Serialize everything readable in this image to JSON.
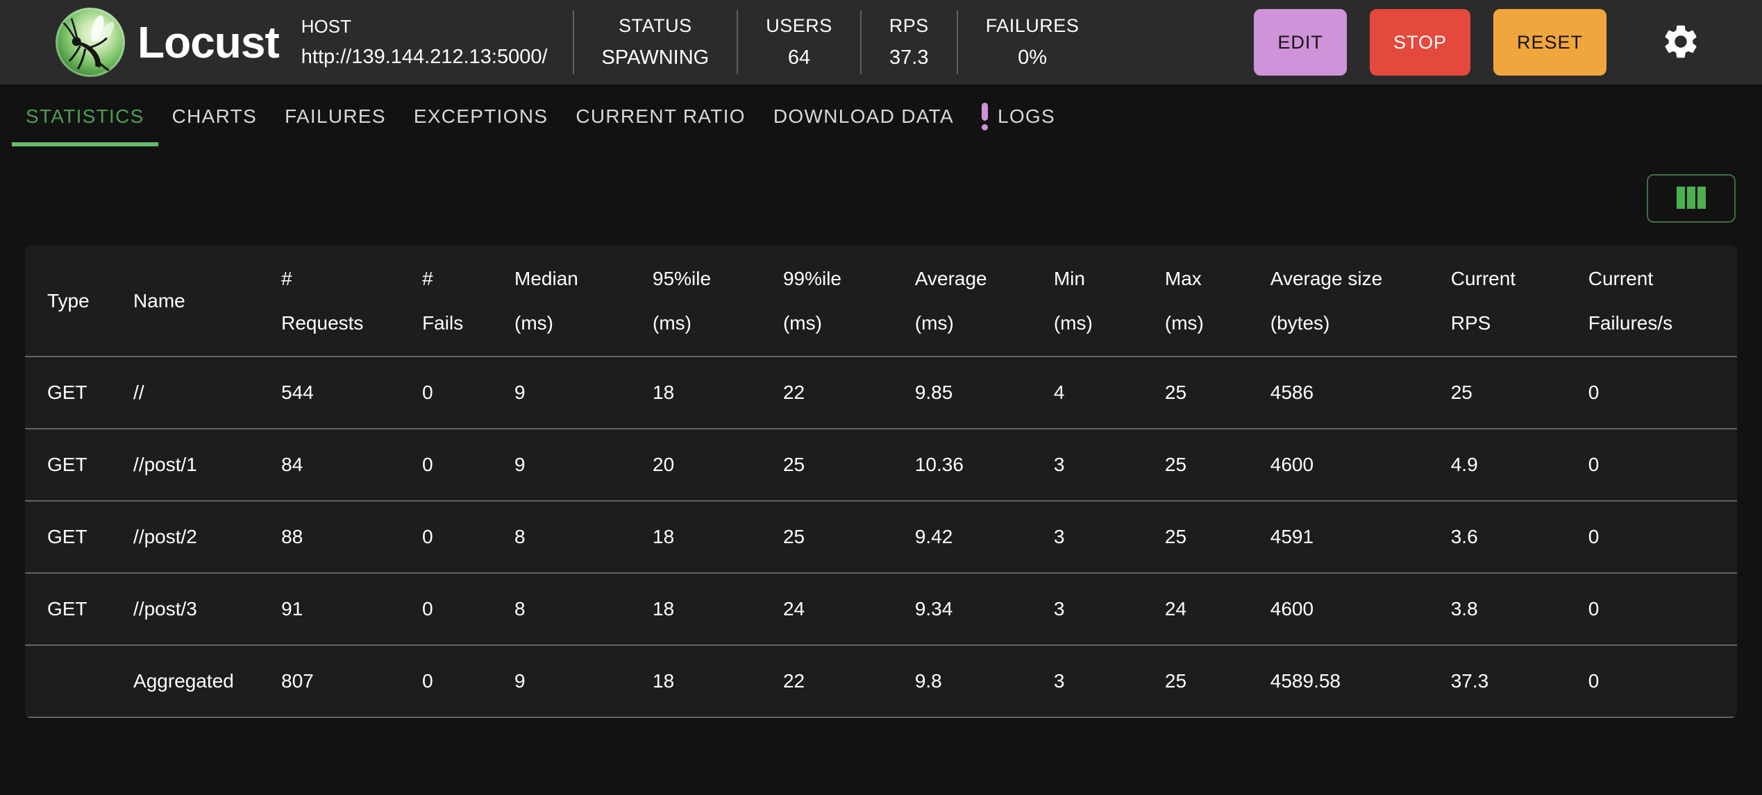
{
  "header": {
    "brand": "Locust",
    "host": {
      "label": "HOST",
      "value": "http://139.144.212.13:5000/"
    },
    "stats": [
      {
        "label": "STATUS",
        "value": "SPAWNING"
      },
      {
        "label": "USERS",
        "value": "64"
      },
      {
        "label": "RPS",
        "value": "37.3"
      },
      {
        "label": "FAILURES",
        "value": "0%"
      }
    ],
    "buttons": [
      {
        "label": "EDIT",
        "bg": "#ce93d8",
        "fg": "#141414"
      },
      {
        "label": "STOP",
        "bg": "#e5493d",
        "fg": "#ffffff"
      },
      {
        "label": "RESET",
        "bg": "#f0a63c",
        "fg": "#141414"
      }
    ]
  },
  "tabs": [
    {
      "label": "STATISTICS",
      "active": true
    },
    {
      "label": "CHARTS"
    },
    {
      "label": "FAILURES"
    },
    {
      "label": "EXCEPTIONS"
    },
    {
      "label": "CURRENT RATIO"
    },
    {
      "label": "DOWNLOAD DATA"
    },
    {
      "label": "LOGS",
      "badge": "!"
    }
  ],
  "table": {
    "columns": [
      "Type",
      "Name",
      "#\nRequests",
      "#\nFails",
      "Median\n(ms)",
      "95%ile\n(ms)",
      "99%ile\n(ms)",
      "Average\n(ms)",
      "Min\n(ms)",
      "Max\n(ms)",
      "Average size\n(bytes)",
      "Current\nRPS",
      "Current\nFailures/s"
    ],
    "rows": [
      {
        "cells": [
          "GET",
          "//",
          "544",
          "0",
          "9",
          "18",
          "22",
          "9.85",
          "4",
          "25",
          "4586",
          "25",
          "0"
        ]
      },
      {
        "cells": [
          "GET",
          "//post/1",
          "84",
          "0",
          "9",
          "20",
          "25",
          "10.36",
          "3",
          "25",
          "4600",
          "4.9",
          "0"
        ]
      },
      {
        "cells": [
          "GET",
          "//post/2",
          "88",
          "0",
          "8",
          "18",
          "25",
          "9.42",
          "3",
          "25",
          "4591",
          "3.6",
          "0"
        ]
      },
      {
        "cells": [
          "GET",
          "//post/3",
          "91",
          "0",
          "8",
          "18",
          "24",
          "9.34",
          "3",
          "24",
          "4600",
          "3.8",
          "0"
        ]
      },
      {
        "cells": [
          "",
          "Aggregated",
          "807",
          "0",
          "9",
          "18",
          "22",
          "9.8",
          "3",
          "25",
          "4589.58",
          "37.3",
          "0"
        ]
      }
    ]
  }
}
